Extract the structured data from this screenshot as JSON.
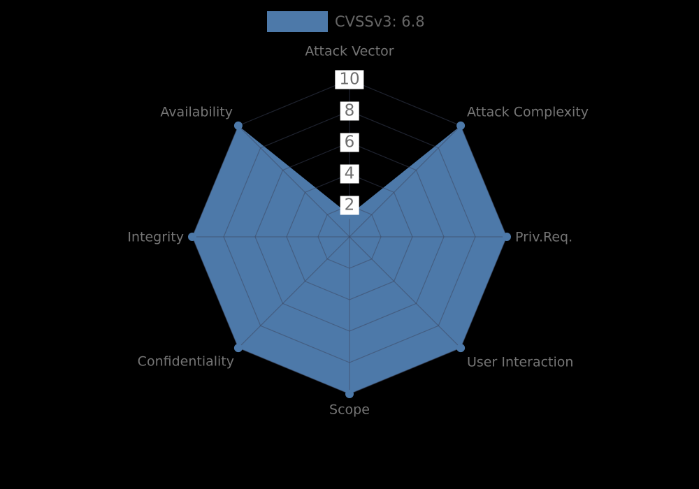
{
  "legend": {
    "label": "CVSSv3: 6.8"
  },
  "chart_data": {
    "type": "radar",
    "title": "",
    "categories": [
      "Attack Vector",
      "Attack Complexity",
      "Priv.Req.",
      "User Interaction",
      "Scope",
      "Confidentiality",
      "Integrity",
      "Availability"
    ],
    "series": [
      {
        "name": "CVSSv3: 6.8",
        "values": [
          1.4,
          10,
          10,
          10,
          10,
          10,
          10,
          10
        ]
      }
    ],
    "radial_ticks": [
      2,
      4,
      6,
      8,
      10
    ],
    "rlim": [
      0,
      10
    ],
    "grid": true,
    "grid_shape": "polygon",
    "legend_position": "top-center",
    "colors": {
      "fill": "#4d79a9",
      "grid_line": "rgba(60,68,92,0.5)",
      "axis_label": "#757575",
      "tick_text": "#6e6e6e",
      "tick_box": "#ffffff",
      "legend_text": "#666666",
      "background": "#000000"
    }
  }
}
